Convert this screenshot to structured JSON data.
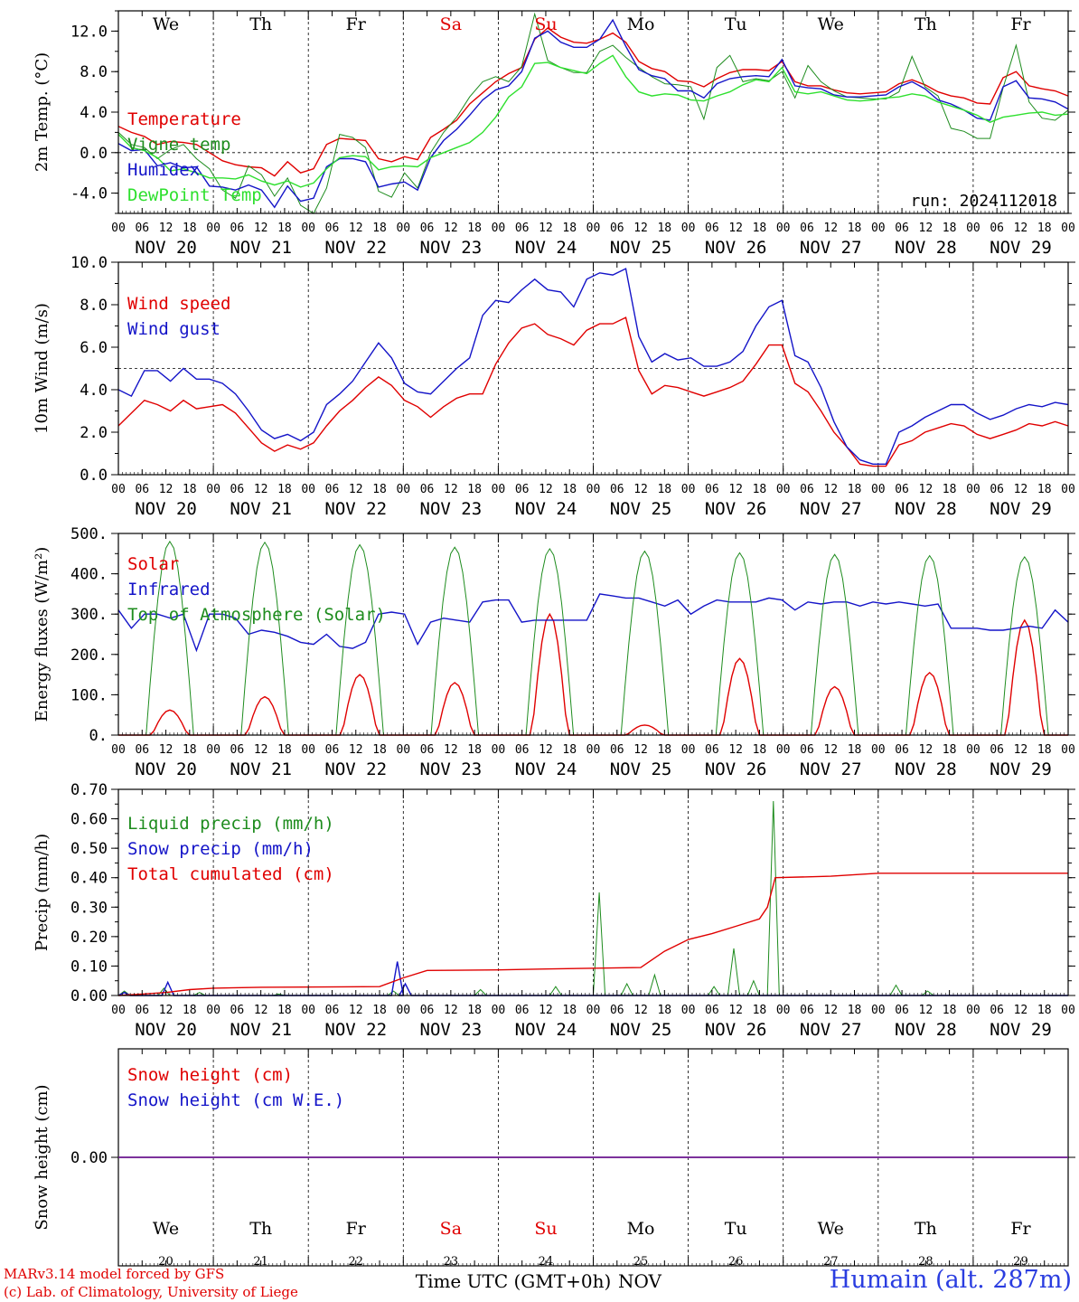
{
  "chart_data": [
    {
      "type": "line",
      "ylabel": "2m Temp. (°C)",
      "ylim": [
        -6,
        14
      ],
      "yticks": [
        "-4.0",
        "0.0",
        "4.0",
        "8.0",
        "12.0"
      ],
      "ytick_values": [
        -4,
        0,
        4,
        8,
        12
      ],
      "reference_line": 0,
      "annotation": "run: 2024112018",
      "series": [
        {
          "name": "Temperature",
          "color": "#e00000",
          "values": [
            2.6,
            2.0,
            1.6,
            0.8,
            1.1,
            1.0,
            0.8,
            0.0,
            -0.8,
            -1.2,
            -1.4,
            -1.5,
            -2.3,
            -0.9,
            -2.0,
            -1.6,
            0.8,
            1.4,
            1.3,
            1.2,
            -0.6,
            -0.9,
            -0.4,
            -0.7,
            1.5,
            2.3,
            3.2,
            4.8,
            5.9,
            7.0,
            7.8,
            8.4,
            11.2,
            12.3,
            11.4,
            10.9,
            10.8,
            11.2,
            11.8,
            10.9,
            9.0,
            8.3,
            8.0,
            7.1,
            7.0,
            6.5,
            7.3,
            7.9,
            8.2,
            8.2,
            8.1,
            9.0,
            7.0,
            6.6,
            6.6,
            6.2,
            5.9,
            5.8,
            5.9,
            6.0,
            6.8,
            7.2,
            6.7,
            6.0,
            5.6,
            5.4,
            4.9,
            4.8,
            7.4,
            8.0,
            6.6,
            6.3,
            6.1,
            5.6
          ]
        },
        {
          "name": "Vigne temp",
          "color": "#1e8c1e",
          "values": [
            2.0,
            0.8,
            0.5,
            -0.6,
            0.3,
            0.8,
            -0.6,
            -1.6,
            -3.7,
            -4.5,
            -1.3,
            -2.2,
            -4.3,
            -2.5,
            -5.2,
            -6.0,
            -3.5,
            1.8,
            1.5,
            0.5,
            -3.8,
            -4.4,
            -2.0,
            -3.5,
            0.0,
            2.0,
            3.5,
            5.5,
            7.0,
            7.5,
            7.0,
            8.5,
            13.7,
            9.1,
            8.4,
            7.9,
            7.9,
            10.0,
            10.6,
            9.4,
            8.4,
            7.5,
            6.8,
            6.7,
            6.5,
            3.3,
            8.4,
            9.6,
            7.0,
            7.3,
            7.1,
            8.0,
            5.4,
            8.6,
            7.0,
            6.1,
            5.5,
            5.4,
            5.3,
            5.3,
            6.0,
            9.5,
            6.5,
            5.6,
            2.4,
            2.1,
            1.4,
            1.4,
            6.4,
            10.6,
            5.0,
            3.4,
            3.2,
            4.2
          ]
        },
        {
          "name": "Humidex",
          "color": "#1414c8",
          "values": [
            0.9,
            0.2,
            0.3,
            -1.3,
            -1.0,
            -1.5,
            -1.4,
            -3.3,
            -3.4,
            -3.7,
            -3.2,
            -3.7,
            -5.4,
            -3.3,
            -4.8,
            -4.5,
            -1.4,
            -0.6,
            -0.6,
            -0.9,
            -3.4,
            -3.1,
            -2.9,
            -3.7,
            -0.5,
            1.2,
            2.3,
            3.7,
            5.2,
            6.2,
            6.6,
            8.0,
            11.3,
            12.0,
            10.9,
            10.4,
            10.4,
            11.2,
            13.1,
            10.5,
            8.2,
            7.6,
            7.3,
            6.1,
            6.1,
            5.4,
            6.8,
            7.3,
            7.5,
            7.6,
            7.5,
            9.2,
            6.6,
            6.4,
            6.3,
            5.7,
            5.5,
            5.5,
            5.6,
            5.7,
            6.5,
            7.0,
            6.3,
            5.2,
            4.8,
            4.2,
            3.4,
            3.2,
            6.5,
            7.1,
            5.4,
            5.3,
            5.0,
            4.3
          ]
        },
        {
          "name": "DewPoint Temp",
          "color": "#2ee02e",
          "values": [
            1.8,
            0.5,
            0.2,
            -0.5,
            -1.8,
            -1.6,
            -2.0,
            -2.5,
            -2.5,
            -2.6,
            -2.2,
            -2.8,
            -3.2,
            -2.8,
            -3.4,
            -3.0,
            -1.6,
            -0.5,
            -0.3,
            -0.4,
            -1.7,
            -1.4,
            -1.3,
            -1.4,
            -0.5,
            0.0,
            0.5,
            1.0,
            2.0,
            3.5,
            5.5,
            6.5,
            8.8,
            8.9,
            8.4,
            8.1,
            7.8,
            8.8,
            9.6,
            7.5,
            6.0,
            5.6,
            5.8,
            5.7,
            5.2,
            5.1,
            5.6,
            6.0,
            6.7,
            7.2,
            7.0,
            8.4,
            6.0,
            5.8,
            6.0,
            5.6,
            5.2,
            5.1,
            5.2,
            5.4,
            5.5,
            5.8,
            5.6,
            5.0,
            4.6,
            4.2,
            3.7,
            3.0,
            3.5,
            3.7,
            3.9,
            4.0,
            3.7,
            3.8
          ]
        }
      ]
    },
    {
      "type": "line",
      "ylabel": "10m Wind (m/s)",
      "ylim": [
        0,
        10
      ],
      "yticks": [
        "0.0",
        "2.0",
        "4.0",
        "6.0",
        "8.0",
        "10.0"
      ],
      "ytick_values": [
        0,
        2,
        4,
        6,
        8,
        10
      ],
      "reference_line": 5,
      "series": [
        {
          "name": "Wind speed",
          "color": "#e00000",
          "values": [
            2.3,
            2.9,
            3.5,
            3.3,
            3.0,
            3.5,
            3.1,
            3.2,
            3.3,
            2.9,
            2.2,
            1.5,
            1.1,
            1.4,
            1.2,
            1.5,
            2.3,
            3.0,
            3.5,
            4.1,
            4.6,
            4.2,
            3.5,
            3.2,
            2.7,
            3.2,
            3.6,
            3.8,
            3.8,
            5.2,
            6.2,
            6.9,
            7.1,
            6.6,
            6.4,
            6.1,
            6.8,
            7.1,
            7.1,
            7.4,
            4.9,
            3.8,
            4.2,
            4.1,
            3.9,
            3.7,
            3.9,
            4.1,
            4.4,
            5.2,
            6.1,
            6.1,
            4.3,
            3.9,
            3.0,
            2.0,
            1.3,
            0.5,
            0.4,
            0.4,
            1.4,
            1.6,
            2.0,
            2.2,
            2.4,
            2.3,
            1.9,
            1.7,
            1.9,
            2.1,
            2.4,
            2.3,
            2.5,
            2.3
          ]
        },
        {
          "name": "Wind gust",
          "color": "#1414c8",
          "values": [
            4.0,
            3.7,
            4.9,
            4.9,
            4.4,
            5.0,
            4.5,
            4.5,
            4.3,
            3.8,
            3.0,
            2.1,
            1.7,
            1.9,
            1.6,
            2.0,
            3.3,
            3.8,
            4.4,
            5.3,
            6.2,
            5.5,
            4.3,
            3.9,
            3.8,
            4.4,
            5.0,
            5.5,
            7.5,
            8.2,
            8.1,
            8.7,
            9.2,
            8.7,
            8.6,
            7.9,
            9.2,
            9.5,
            9.4,
            9.7,
            6.5,
            5.3,
            5.7,
            5.4,
            5.5,
            5.1,
            5.1,
            5.3,
            5.8,
            7.0,
            7.9,
            8.2,
            5.6,
            5.3,
            4.1,
            2.5,
            1.3,
            0.7,
            0.5,
            0.5,
            2.0,
            2.3,
            2.7,
            3.0,
            3.3,
            3.3,
            2.9,
            2.6,
            2.8,
            3.1,
            3.3,
            3.2,
            3.4,
            3.3
          ]
        }
      ]
    },
    {
      "type": "line",
      "ylabel": "Energy fluxes (W/m²)",
      "ylim": [
        0,
        500
      ],
      "yticks": [
        "0.",
        "100.",
        "200.",
        "300.",
        "400.",
        "500."
      ],
      "ytick_values": [
        0,
        100,
        200,
        300,
        400,
        500
      ],
      "series": [
        {
          "name": "Solar",
          "color": "#e00000",
          "peaks": [
            62,
            95,
            150,
            130,
            300,
            25,
            190,
            120,
            155,
            285
          ]
        },
        {
          "name": "Infrared",
          "color": "#1414c8",
          "values": [
            310,
            265,
            300,
            300,
            290,
            300,
            210,
            300,
            300,
            290,
            250,
            260,
            255,
            245,
            230,
            225,
            250,
            220,
            215,
            230,
            300,
            305,
            300,
            225,
            280,
            290,
            285,
            280,
            330,
            335,
            335,
            280,
            285,
            285,
            285,
            285,
            285,
            350,
            345,
            340,
            340,
            330,
            320,
            335,
            300,
            320,
            335,
            330,
            330,
            330,
            340,
            335,
            310,
            330,
            325,
            330,
            330,
            320,
            330,
            325,
            330,
            325,
            320,
            325,
            265,
            265,
            265,
            260,
            260,
            265,
            270,
            265,
            310,
            280
          ]
        },
        {
          "name": "Top of Atmosphere (Solar)",
          "color": "#1e8c1e",
          "peaks": [
            480,
            478,
            472,
            466,
            462,
            456,
            452,
            448,
            445,
            442
          ]
        }
      ]
    },
    {
      "type": "line",
      "ylabel": "Precip (mm/h)",
      "ylim": [
        0,
        0.7
      ],
      "yticks": [
        "0.00",
        "0.10",
        "0.20",
        "0.30",
        "0.40",
        "0.50",
        "0.60",
        "0.70"
      ],
      "ytick_values": [
        0,
        0.1,
        0.2,
        0.3,
        0.4,
        0.5,
        0.6,
        0.7
      ],
      "series": [
        {
          "name": "Liquid precip (mm/h)",
          "color": "#1e8c1e",
          "events": [
            [
              1.5,
              0.015
            ],
            [
              11.5,
              0.025
            ],
            [
              20.5,
              0.01
            ],
            [
              40.5,
              0.005
            ],
            [
              69.5,
              0.015
            ],
            [
              91.5,
              0.02
            ],
            [
              110.5,
              0.03
            ],
            [
              121.5,
              0.35
            ],
            [
              128.5,
              0.04
            ],
            [
              135.5,
              0.07
            ],
            [
              150.5,
              0.03
            ],
            [
              155.5,
              0.16
            ],
            [
              160.5,
              0.05
            ],
            [
              165.5,
              0.66
            ],
            [
              196.5,
              0.035
            ],
            [
              204.5,
              0.015
            ]
          ]
        },
        {
          "name": "Snow precip (mm/h)",
          "color": "#1414c8",
          "events": [
            [
              1.5,
              0.01
            ],
            [
              12.5,
              0.045
            ],
            [
              70.5,
              0.115
            ],
            [
              72.5,
              0.04
            ]
          ]
        },
        {
          "name": "Total cumulated (cm)",
          "color": "#e00000",
          "steps": [
            [
              0,
              0.0
            ],
            [
              6,
              0.005
            ],
            [
              12,
              0.01
            ],
            [
              18,
              0.02
            ],
            [
              24,
              0.025
            ],
            [
              36,
              0.028
            ],
            [
              66,
              0.03
            ],
            [
              72,
              0.06
            ],
            [
              78,
              0.085
            ],
            [
              96,
              0.087
            ],
            [
              108,
              0.09
            ],
            [
              132,
              0.095
            ],
            [
              138,
              0.15
            ],
            [
              144,
              0.19
            ],
            [
              150,
              0.21
            ],
            [
              156,
              0.235
            ],
            [
              162,
              0.26
            ],
            [
              164,
              0.3
            ],
            [
              166,
              0.4
            ],
            [
              180,
              0.405
            ],
            [
              192,
              0.415
            ],
            [
              240,
              0.415
            ]
          ]
        }
      ]
    },
    {
      "type": "line",
      "ylabel": "Snow height (cm)",
      "yticks": [
        "0.00"
      ],
      "ytick_values": [
        0
      ],
      "series": [
        {
          "name": "Snow height (cm)",
          "color": "#e00000",
          "values": [
            0,
            0
          ]
        },
        {
          "name": "Snow height (cm W.E.)",
          "color": "#1414c8",
          "values": [
            0,
            0
          ]
        }
      ]
    }
  ],
  "time_axis": {
    "hour_labels": [
      "00",
      "06",
      "12",
      "18"
    ],
    "date_labels": [
      "NOV 20",
      "NOV 21",
      "NOV 22",
      "NOV 23",
      "NOV 24",
      "NOV 25",
      "NOV 26",
      "NOV 27",
      "NOV 28",
      "NOV 29"
    ],
    "weekdays": [
      "We",
      "Th",
      "Fr",
      "Sa",
      "Su",
      "Mo",
      "Tu",
      "We",
      "Th",
      "Fr"
    ],
    "weekend_color": "#e00000",
    "day_numbers": [
      "20",
      "21",
      "22",
      "23",
      "24",
      "25",
      "26",
      "27",
      "28",
      "29"
    ],
    "xlabel": "Time UTC (GMT+0h)",
    "month": "NOV"
  },
  "footer": {
    "credit_line1": "MARv3.14 model forced by GFS",
    "credit_line2": "(c) Lab. of Climatology, University of Liege",
    "station": "Humain (alt. 287m)"
  }
}
